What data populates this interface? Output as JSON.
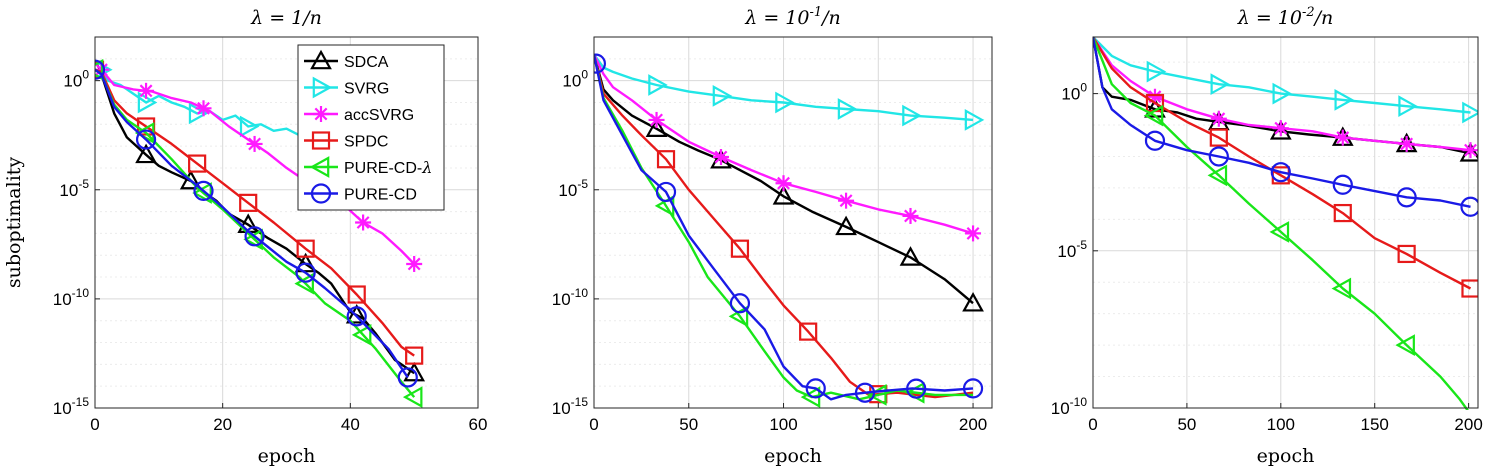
{
  "chart_data": [
    {
      "type": "line",
      "title": "λ = 1/n",
      "xlabel": "epoch",
      "ylabel": "suboptimality",
      "xlim": [
        0,
        60
      ],
      "ylim_exp": [
        -15,
        2
      ],
      "yscale": "log",
      "xticks": [
        "0",
        "20",
        "40",
        "60"
      ],
      "yticks": [
        {
          "b": "10",
          "e": "-15",
          "exp": -15
        },
        {
          "b": "10",
          "e": "-10",
          "exp": -10
        },
        {
          "b": "10",
          "e": "-5",
          "exp": -5
        },
        {
          "b": "10",
          "e": "0",
          "exp": 0
        }
      ],
      "grid": true,
      "legend": "top-right",
      "series": [
        {
          "name": "SDCA",
          "color": "#000000",
          "marker": "triangle-up",
          "x": [
            0,
            1,
            3,
            5,
            8,
            10,
            12,
            15,
            17,
            19,
            21,
            24,
            27,
            30,
            33,
            35,
            37,
            40,
            42,
            44,
            47,
            50
          ],
          "y": [
            0.5,
            0.3,
            -1.5,
            -2.6,
            -3.4,
            -3.9,
            -4.2,
            -4.6,
            -5.1,
            -5.5,
            -6.1,
            -6.6,
            -7.2,
            -7.7,
            -8.4,
            -8.8,
            -9.3,
            -10.6,
            -10.9,
            -11.6,
            -12.8,
            -13.4
          ],
          "markers_x": [
            0,
            8,
            15,
            24,
            33,
            41,
            50
          ]
        },
        {
          "name": "SVRG",
          "color": "#21e6e6",
          "marker": "triangle-right",
          "x": [
            1,
            2,
            4,
            6,
            8,
            10,
            12,
            14,
            16,
            18,
            20,
            22,
            24,
            26,
            28,
            30,
            32,
            34,
            36
          ],
          "y": [
            0.5,
            0.0,
            -0.2,
            -0.6,
            -1.0,
            -0.7,
            -1.0,
            -1.2,
            -1.5,
            -1.4,
            -1.8,
            -1.6,
            -2.1,
            -2.0,
            -2.3,
            -2.2,
            -2.5,
            -2.9,
            -3.1
          ],
          "markers_x": [
            1,
            8,
            16,
            24
          ]
        },
        {
          "name": "accSVRG",
          "color": "#ff1aff",
          "marker": "asterisk",
          "x": [
            1,
            3,
            6,
            9,
            12,
            15,
            18,
            21,
            24,
            27,
            30,
            33,
            36,
            39,
            42,
            45,
            48,
            50
          ],
          "y": [
            0.5,
            -0.2,
            -0.4,
            -0.5,
            -0.8,
            -1.0,
            -1.4,
            -2.1,
            -2.7,
            -3.3,
            -4.0,
            -4.6,
            -5.2,
            -5.7,
            -6.5,
            -7.0,
            -7.8,
            -8.4
          ],
          "markers_x": [
            1,
            8,
            17,
            25,
            34,
            42,
            50
          ]
        },
        {
          "name": "SPDC",
          "color": "#e61a1a",
          "marker": "square",
          "x": [
            0,
            1,
            3,
            5,
            8,
            12,
            16,
            20,
            24,
            28,
            33,
            37,
            41,
            45,
            48,
            50
          ],
          "y": [
            0.5,
            0.4,
            -0.9,
            -1.5,
            -2.1,
            -2.9,
            -3.8,
            -4.7,
            -5.6,
            -6.5,
            -7.7,
            -8.6,
            -9.8,
            -11.1,
            -12.2,
            -12.6
          ],
          "markers_x": [
            0,
            8,
            16,
            24,
            33,
            41,
            50
          ]
        },
        {
          "name": "PURE-CD-λ",
          "color": "#19e619",
          "marker": "triangle-left",
          "x": [
            0,
            1,
            3,
            5,
            8,
            12,
            16,
            20,
            24,
            28,
            32,
            36,
            40,
            44,
            48,
            50
          ],
          "y": [
            0.5,
            0.3,
            -1.1,
            -1.8,
            -2.4,
            -3.6,
            -4.9,
            -5.9,
            -7.0,
            -8.1,
            -9.0,
            -10.2,
            -11.0,
            -12.3,
            -13.8,
            -14.5
          ],
          "markers_x": [
            0,
            8,
            17,
            25,
            33,
            42,
            50
          ]
        },
        {
          "name": "PURE-CD",
          "color": "#1a1ae6",
          "marker": "circle",
          "x": [
            0,
            1,
            3,
            5,
            8,
            12,
            16,
            20,
            24,
            27,
            30,
            33,
            36,
            40,
            43,
            46,
            49
          ],
          "y": [
            0.5,
            0.3,
            -1.2,
            -1.9,
            -2.7,
            -3.9,
            -4.8,
            -5.8,
            -6.9,
            -7.6,
            -8.3,
            -8.8,
            -9.5,
            -10.5,
            -11.4,
            -12.3,
            -13.6
          ],
          "markers_x": [
            0,
            8,
            17,
            25,
            33,
            41,
            49
          ]
        }
      ]
    },
    {
      "type": "line",
      "title": "λ = 10^{-1}/n",
      "xlabel": "epoch",
      "ylabel": "",
      "xlim": [
        0,
        210
      ],
      "ylim_exp": [
        -15,
        2
      ],
      "yscale": "log",
      "xticks": [
        "0",
        "50",
        "100",
        "150",
        "200"
      ],
      "yticks": [
        {
          "b": "10",
          "e": "-15",
          "exp": -15
        },
        {
          "b": "10",
          "e": "-10",
          "exp": -10
        },
        {
          "b": "10",
          "e": "-5",
          "exp": -5
        },
        {
          "b": "10",
          "e": "0",
          "exp": 0
        }
      ],
      "grid": true,
      "legend": "",
      "series": [
        {
          "name": "SDCA",
          "color": "#000000",
          "x": [
            0,
            5,
            10,
            20,
            33,
            45,
            55,
            66,
            77,
            88,
            100,
            115,
            133,
            150,
            167,
            185,
            200
          ],
          "y": [
            1.2,
            -0.4,
            -0.9,
            -1.6,
            -2.2,
            -2.8,
            -3.2,
            -3.6,
            -4.1,
            -4.6,
            -5.3,
            -6.0,
            -6.7,
            -7.4,
            -8.1,
            -9.1,
            -10.2
          ],
          "markers_x": [
            33,
            67,
            100,
            133,
            167,
            200
          ]
        },
        {
          "name": "SVRG",
          "color": "#21e6e6",
          "x": [
            0,
            5,
            10,
            20,
            33,
            50,
            67,
            83,
            100,
            117,
            133,
            150,
            167,
            185,
            200
          ],
          "y": [
            1.2,
            0.6,
            0.4,
            0.1,
            -0.2,
            -0.5,
            -0.7,
            -0.9,
            -1.0,
            -1.2,
            -1.3,
            -1.4,
            -1.6,
            -1.7,
            -1.8
          ],
          "markers_x": [
            33,
            67,
            100,
            133,
            167,
            200
          ]
        },
        {
          "name": "accSVRG",
          "color": "#ff1aff",
          "x": [
            0,
            5,
            10,
            20,
            33,
            50,
            67,
            83,
            100,
            117,
            133,
            150,
            167,
            185,
            200
          ],
          "y": [
            1.2,
            0.3,
            -0.3,
            -0.9,
            -1.8,
            -2.8,
            -3.5,
            -4.1,
            -4.7,
            -5.1,
            -5.5,
            -5.9,
            -6.2,
            -6.6,
            -7.0
          ],
          "markers_x": [
            33,
            67,
            100,
            133,
            167,
            200
          ]
        },
        {
          "name": "SPDC",
          "color": "#e61a1a",
          "x": [
            0,
            5,
            15,
            25,
            38,
            50,
            60,
            77,
            90,
            100,
            113,
            125,
            135,
            145,
            160,
            180,
            200
          ],
          "y": [
            1.2,
            -0.6,
            -1.6,
            -2.5,
            -3.6,
            -5.0,
            -6.0,
            -7.7,
            -9.2,
            -10.3,
            -11.5,
            -12.7,
            -13.8,
            -14.4,
            -14.3,
            -14.5,
            -14.3
          ],
          "markers_x": [
            38,
            77,
            113,
            150
          ]
        },
        {
          "name": "PURE-CD-λ",
          "color": "#19e619",
          "x": [
            0,
            5,
            15,
            25,
            37,
            50,
            60,
            77,
            90,
            100,
            107,
            115,
            125,
            140,
            160,
            180,
            200
          ],
          "y": [
            1.2,
            -0.8,
            -2.3,
            -4.0,
            -5.6,
            -7.4,
            -9.0,
            -10.8,
            -12.4,
            -13.6,
            -14.2,
            -14.5,
            -14.3,
            -14.6,
            -14.2,
            -14.4,
            -14.4
          ],
          "markers_x": [
            38,
            77,
            115,
            150,
            170
          ]
        },
        {
          "name": "PURE-CD",
          "color": "#1a1ae6",
          "x": [
            0,
            5,
            15,
            25,
            38,
            50,
            63,
            77,
            90,
            100,
            110,
            117,
            125,
            133,
            143,
            155,
            168,
            185,
            200
          ],
          "y": [
            1.2,
            -0.9,
            -2.5,
            -4.1,
            -5.1,
            -7.1,
            -8.6,
            -10.2,
            -11.4,
            -13.1,
            -14.0,
            -14.1,
            -14.6,
            -14.4,
            -14.3,
            -14.2,
            -14.1,
            -14.2,
            -14.1
          ],
          "markers_x": [
            1,
            38,
            77,
            117,
            143,
            170,
            200
          ]
        }
      ]
    },
    {
      "type": "line",
      "title": "λ = 10^{-2}/n",
      "xlabel": "epoch",
      "ylabel": "",
      "xlim": [
        0,
        205
      ],
      "ylim_exp": [
        -10,
        1.8
      ],
      "yscale": "log",
      "xticks": [
        "0",
        "50",
        "100",
        "150",
        "200"
      ],
      "yticks": [
        {
          "b": "10",
          "e": "-10",
          "exp": -10
        },
        {
          "b": "10",
          "e": "-5",
          "exp": -5
        },
        {
          "b": "10",
          "e": "0",
          "exp": 0
        }
      ],
      "grid": true,
      "legend": "",
      "series": [
        {
          "name": "SDCA",
          "color": "#000000",
          "x": [
            0,
            5,
            10,
            20,
            33,
            45,
            55,
            67,
            80,
            100,
            115,
            133,
            150,
            167,
            185,
            201
          ],
          "y": [
            1.8,
            0.2,
            -0.1,
            -0.2,
            -0.5,
            -0.6,
            -0.8,
            -0.9,
            -1.0,
            -1.2,
            -1.3,
            -1.4,
            -1.5,
            -1.6,
            -1.7,
            -1.9
          ],
          "markers_x": [
            33,
            67,
            100,
            133,
            167,
            201
          ]
        },
        {
          "name": "SVRG",
          "color": "#21e6e6",
          "x": [
            0,
            10,
            20,
            33,
            50,
            67,
            83,
            100,
            117,
            133,
            150,
            167,
            185,
            201
          ],
          "y": [
            1.8,
            1.2,
            0.9,
            0.7,
            0.5,
            0.3,
            0.2,
            0.0,
            -0.1,
            -0.2,
            -0.3,
            -0.4,
            -0.5,
            -0.6
          ],
          "markers_x": [
            33,
            67,
            100,
            133,
            167,
            201
          ]
        },
        {
          "name": "accSVRG",
          "color": "#ff1aff",
          "x": [
            0,
            10,
            20,
            33,
            50,
            67,
            83,
            100,
            117,
            133,
            150,
            167,
            185,
            201
          ],
          "y": [
            1.8,
            0.9,
            0.4,
            -0.1,
            -0.5,
            -0.8,
            -1.0,
            -1.1,
            -1.2,
            -1.4,
            -1.5,
            -1.6,
            -1.7,
            -1.8
          ],
          "markers_x": [
            33,
            67,
            100,
            133,
            167,
            201
          ]
        },
        {
          "name": "SPDC",
          "color": "#e61a1a",
          "x": [
            0,
            10,
            20,
            33,
            50,
            67,
            83,
            100,
            117,
            133,
            150,
            167,
            185,
            201
          ],
          "y": [
            1.8,
            0.8,
            0.2,
            -0.3,
            -0.9,
            -1.4,
            -2.0,
            -2.6,
            -3.2,
            -3.8,
            -4.6,
            -5.1,
            -5.7,
            -6.2
          ],
          "markers_x": [
            33,
            67,
            100,
            133,
            167,
            201
          ]
        },
        {
          "name": "PURE-CD-λ",
          "color": "#19e619",
          "x": [
            0,
            10,
            20,
            33,
            50,
            67,
            83,
            100,
            117,
            133,
            150,
            167,
            185,
            195,
            201
          ],
          "y": [
            1.8,
            0.3,
            -0.3,
            -0.7,
            -1.7,
            -2.6,
            -3.5,
            -4.4,
            -5.3,
            -6.2,
            -7.0,
            -8.0,
            -9.0,
            -9.7,
            -10.2
          ],
          "markers_x": [
            33,
            67,
            100,
            133,
            167
          ]
        },
        {
          "name": "PURE-CD",
          "color": "#1a1ae6",
          "x": [
            0,
            5,
            10,
            20,
            33,
            50,
            67,
            83,
            100,
            117,
            133,
            150,
            167,
            185,
            201
          ],
          "y": [
            1.8,
            0.2,
            -0.5,
            -1.0,
            -1.5,
            -1.8,
            -2.0,
            -2.2,
            -2.5,
            -2.7,
            -2.9,
            -3.1,
            -3.3,
            -3.4,
            -3.6
          ],
          "markers_x": [
            33,
            67,
            100,
            133,
            167,
            201
          ]
        }
      ]
    }
  ]
}
